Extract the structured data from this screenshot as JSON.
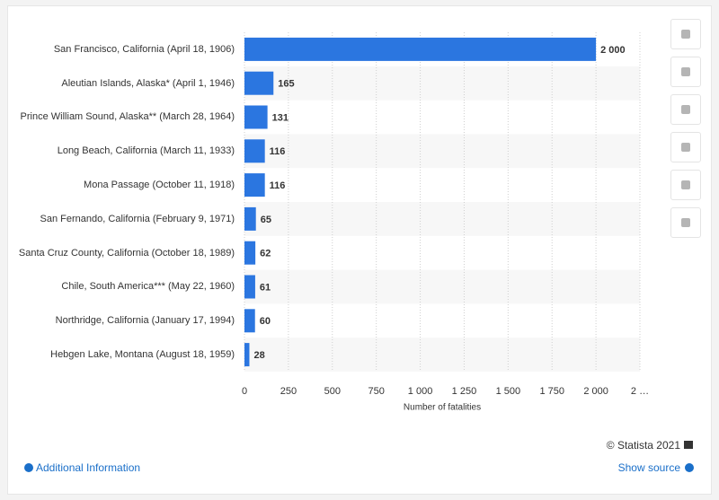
{
  "chart_data": {
    "type": "bar",
    "orientation": "horizontal",
    "categories": [
      "San Francisco, California (April 18, 1906)",
      "Aleutian Islands, Alaska* (April 1, 1946)",
      "Prince William Sound, Alaska** (March 28, 1964)",
      "Long Beach, California (March 11, 1933)",
      "Mona Passage (October 11, 1918)",
      "San Fernando, California (February 9, 1971)",
      "Santa Cruz County, California (October 18, 1989)",
      "Chile, South America*** (May 22, 1960)",
      "Northridge, California (January 17, 1994)",
      "Hebgen Lake, Montana (August 18, 1959)"
    ],
    "values": [
      2000,
      165,
      131,
      116,
      116,
      65,
      62,
      61,
      60,
      28
    ],
    "value_labels": [
      "2 000",
      "165",
      "131",
      "116",
      "116",
      "65",
      "62",
      "61",
      "60",
      "28"
    ],
    "color": "#2b76e0",
    "xlabel": "Number of fatalities",
    "xlim": [
      0,
      2250
    ],
    "xticks": [
      0,
      250,
      500,
      750,
      {
        "value": 1000,
        "label": "1 000"
      },
      {
        "value": 1250,
        "label": "1 250"
      },
      {
        "value": 1500,
        "label": "1 500"
      },
      {
        "value": 1750,
        "label": "1 750"
      },
      {
        "value": 2000,
        "label": "2 000"
      },
      {
        "value": 2250,
        "label": "2 …"
      }
    ],
    "grid": true
  },
  "ui": {
    "copyright": "© Statista 2021",
    "additional_info": "Additional Information",
    "show_source": "Show source"
  }
}
